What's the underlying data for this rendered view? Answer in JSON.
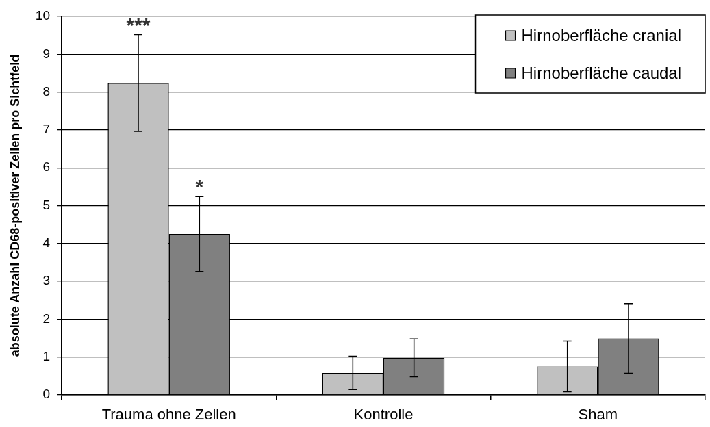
{
  "chart_data": {
    "type": "bar",
    "ylabel": "absolute Anzahl CD68-positiver Zellen pro Sichtfeld",
    "categories": [
      "Trauma ohne Zellen",
      "Kontrolle",
      "Sham"
    ],
    "series": [
      {
        "name": "Hirnoberfläche cranial",
        "color": "#c0c0c0",
        "values": [
          8.24,
          0.58,
          0.75
        ],
        "errors": [
          1.28,
          0.44,
          0.67
        ]
      },
      {
        "name": "Hirnoberfläche caudal",
        "color": "#808080",
        "values": [
          4.25,
          0.98,
          1.49
        ],
        "errors": [
          0.99,
          0.5,
          0.92
        ]
      }
    ],
    "ylim": [
      0,
      10
    ],
    "yticks": [
      0,
      1,
      2,
      3,
      4,
      5,
      6,
      7,
      8,
      9,
      10
    ],
    "grid": "y",
    "legend": "top right",
    "annotations": [
      "***",
      "*"
    ]
  }
}
